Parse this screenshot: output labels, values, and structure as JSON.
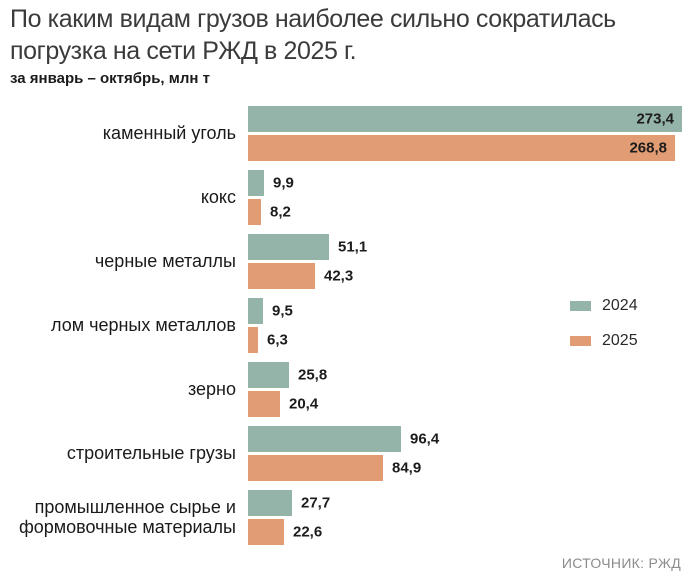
{
  "title": "По каким видам грузов наиболее сильно сократилась погрузка на сети РЖД в 2025 г.",
  "subtitle": "за январь – октябрь, млн т",
  "source": "ИСТОЧНИК: РЖД",
  "colors": {
    "series_2024": "#94b4aa",
    "series_2025": "#e29c73",
    "text": "#1a1a1a",
    "title": "#3b3b3b",
    "source": "#8c8c8c",
    "background": "#ffffff"
  },
  "legend": {
    "items": [
      {
        "label": "2024",
        "color": "#94b4aa"
      },
      {
        "label": "2025",
        "color": "#e29c73"
      }
    ],
    "position": "right"
  },
  "chart_data": {
    "type": "bar",
    "orientation": "horizontal",
    "title": "По каким видам грузов наиболее сильно сократилась погрузка на сети РЖД в 2025 г.",
    "subtitle": "за январь – октябрь, млн т",
    "unit": "млн т",
    "xlim": [
      0,
      280
    ],
    "grid": false,
    "value_labels": true,
    "legend_position": "right",
    "categories": [
      "каменный уголь",
      "кокс",
      "черные металлы",
      "лом черных металлов",
      "зерно",
      "строительные грузы",
      "промышленное сырье и формовочные материалы"
    ],
    "series": [
      {
        "name": "2024",
        "color": "#94b4aa",
        "values": [
          273.4,
          9.9,
          51.1,
          9.5,
          25.8,
          96.4,
          27.7
        ]
      },
      {
        "name": "2025",
        "color": "#e29c73",
        "values": [
          268.8,
          8.2,
          42.3,
          6.3,
          20.4,
          84.9,
          22.6
        ]
      }
    ]
  }
}
